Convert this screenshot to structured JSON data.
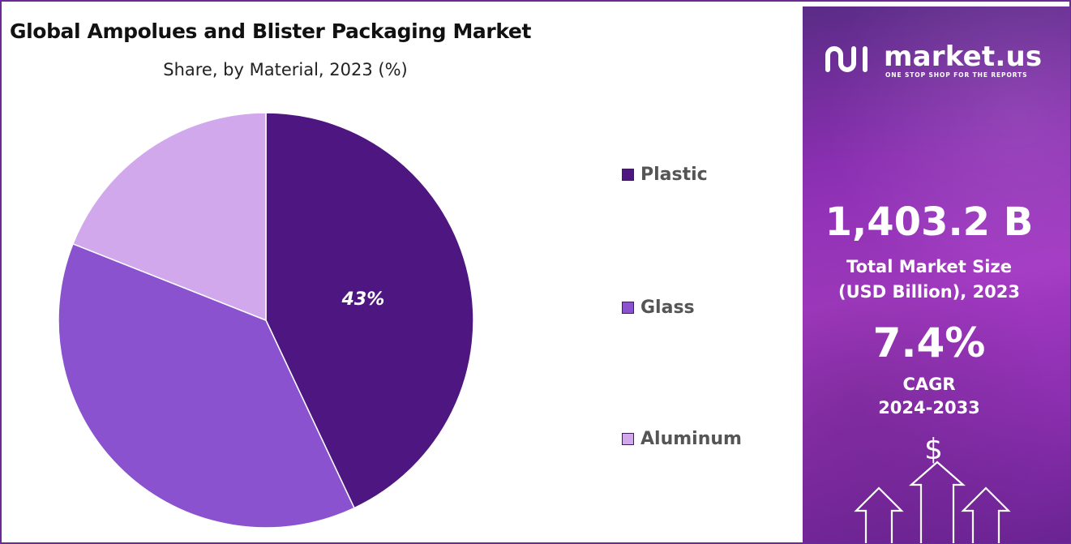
{
  "chart_data": {
    "type": "pie",
    "title": "Global Ampolues and Blister Packaging Market",
    "subtitle": "Share, by Material, 2023 (%)",
    "categories": [
      "Plastic",
      "Glass",
      "Aluminum"
    ],
    "values": [
      43,
      38,
      19
    ],
    "data_labels": [
      "43%",
      "",
      ""
    ],
    "colors": [
      "#4e1680",
      "#8a52cf",
      "#d2a8ec"
    ],
    "legend_position": "right"
  },
  "panel": {
    "logo_text": "market.us",
    "logo_tagline": "ONE STOP SHOP FOR THE REPORTS",
    "market_size": "1,403.2 B",
    "market_size_label_line1": "Total Market Size",
    "market_size_label_line2": "(USD Billion), 2023",
    "cagr": "7.4%",
    "cagr_label_line1": "CAGR",
    "cagr_label_line2": "2024-2033",
    "currency_symbol": "$",
    "icons": [
      "market-us-logo-icon",
      "dollar-icon",
      "up-arrow-icon"
    ]
  }
}
